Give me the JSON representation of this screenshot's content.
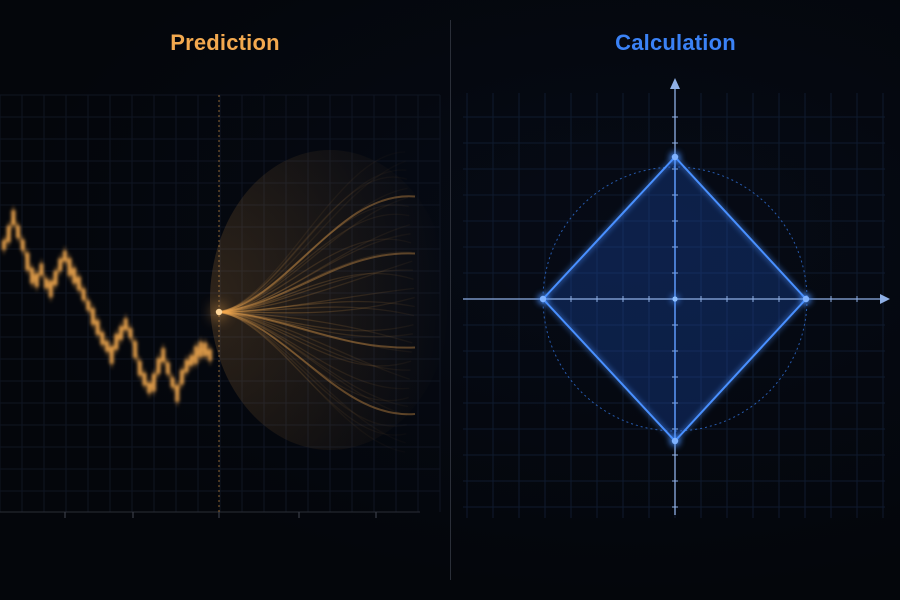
{
  "prediction": {
    "title": "Prediction",
    "color": "#f3a94f",
    "history": [
      0.5,
      0.6,
      0.75,
      0.62,
      0.5,
      0.35,
      0.22,
      0.18,
      0.28,
      0.15,
      0.1,
      0.2,
      0.32,
      0.4,
      0.3,
      0.22,
      0.15,
      0.05,
      -0.05,
      -0.15,
      -0.25,
      -0.35,
      -0.42,
      -0.5,
      -0.38,
      -0.3,
      -0.22,
      -0.3,
      -0.45,
      -0.62,
      -0.72,
      -0.8,
      -0.75,
      -0.6,
      -0.5,
      -0.62,
      -0.75,
      -0.85,
      -0.7,
      -0.6,
      -0.55,
      -0.5,
      -0.45,
      -0.45,
      -0.5
    ]
  },
  "calculation": {
    "title": "Calculation",
    "color": "#3b82f6"
  }
}
